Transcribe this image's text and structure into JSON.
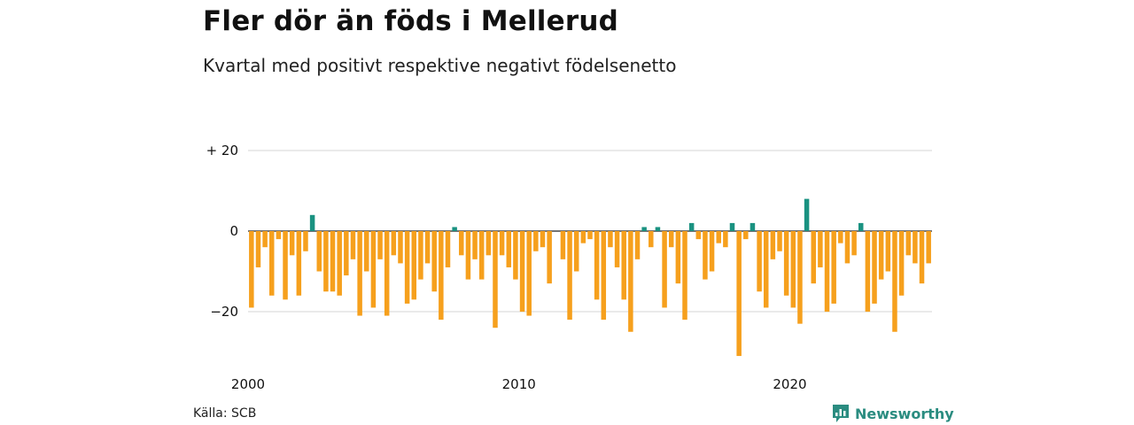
{
  "title": "Fler dör än föds i Mellerud",
  "subtitle": "Kvartal med positivt respektive negativt födelsenetto",
  "source": "Källa: SCB",
  "brand": "Newsworthy",
  "colors": {
    "positive": "#1a9281",
    "negative": "#f6a01d",
    "grid": "#dddddd",
    "zero": "#222222"
  },
  "chart_data": {
    "type": "bar",
    "title": "Fler dör än föds i Mellerud",
    "subtitle": "Kvartal med positivt respektive negativt födelsenetto",
    "xlabel": "",
    "ylabel": "",
    "ylim": [
      -32,
      24
    ],
    "y_ticks": [
      20,
      0,
      -20
    ],
    "y_tick_labels": [
      "+ 20",
      "0",
      "−20"
    ],
    "x_ticks": [
      2000,
      2010,
      2020
    ],
    "x_tick_labels": [
      "2000",
      "2010",
      "2020"
    ],
    "grid": true,
    "categories": [
      "2000Q1",
      "2000Q2",
      "2000Q3",
      "2000Q4",
      "2001Q1",
      "2001Q2",
      "2001Q3",
      "2001Q4",
      "2002Q1",
      "2002Q2",
      "2002Q3",
      "2002Q4",
      "2003Q1",
      "2003Q2",
      "2003Q3",
      "2003Q4",
      "2004Q1",
      "2004Q2",
      "2004Q3",
      "2004Q4",
      "2005Q1",
      "2005Q2",
      "2005Q3",
      "2005Q4",
      "2006Q1",
      "2006Q2",
      "2006Q3",
      "2006Q4",
      "2007Q1",
      "2007Q2",
      "2007Q3",
      "2007Q4",
      "2008Q1",
      "2008Q2",
      "2008Q3",
      "2008Q4",
      "2009Q1",
      "2009Q2",
      "2009Q3",
      "2009Q4",
      "2010Q1",
      "2010Q2",
      "2010Q3",
      "2010Q4",
      "2011Q1",
      "2011Q2",
      "2011Q3",
      "2011Q4",
      "2012Q1",
      "2012Q2",
      "2012Q3",
      "2012Q4",
      "2013Q1",
      "2013Q2",
      "2013Q3",
      "2013Q4",
      "2014Q1",
      "2014Q2",
      "2014Q3",
      "2014Q4",
      "2015Q1",
      "2015Q2",
      "2015Q3",
      "2015Q4",
      "2016Q1",
      "2016Q2",
      "2016Q3",
      "2016Q4",
      "2017Q1",
      "2017Q2",
      "2017Q3",
      "2017Q4",
      "2018Q1",
      "2018Q2",
      "2018Q3",
      "2018Q4",
      "2019Q1",
      "2019Q2",
      "2019Q3",
      "2019Q4",
      "2020Q1",
      "2020Q2",
      "2020Q3",
      "2020Q4",
      "2021Q1",
      "2021Q2",
      "2021Q3",
      "2021Q4",
      "2022Q1",
      "2022Q2",
      "2022Q3",
      "2022Q4",
      "2023Q1",
      "2023Q2",
      "2023Q3",
      "2023Q4",
      "2024Q1",
      "2024Q2",
      "2024Q3",
      "2024Q4",
      "2025Q1"
    ],
    "values": [
      -19,
      -9,
      -4,
      -16,
      -2,
      -17,
      -6,
      -16,
      -5,
      4,
      -10,
      -15,
      -15,
      -16,
      -11,
      -7,
      -21,
      -10,
      -19,
      -7,
      -21,
      -6,
      -8,
      -18,
      -17,
      -12,
      -8,
      -15,
      -22,
      -9,
      1,
      -6,
      -12,
      -7,
      -12,
      -6,
      -24,
      -6,
      -9,
      -12,
      -20,
      -21,
      -5,
      -4,
      -13,
      0,
      -7,
      -22,
      -10,
      -3,
      -2,
      -17,
      -22,
      -4,
      -9,
      -17,
      -25,
      -7,
      1,
      -4,
      1,
      -19,
      -4,
      -13,
      -22,
      2,
      -2,
      -12,
      -10,
      -3,
      -4,
      2,
      -31,
      -2,
      2,
      -15,
      -19,
      -7,
      -5,
      -16,
      -19,
      -23,
      8,
      -13,
      -9,
      -20,
      -18,
      -3,
      -8,
      -6,
      2,
      -20,
      -18,
      -12,
      -10,
      -25,
      -16,
      -6,
      -8,
      -13,
      -8
    ]
  }
}
